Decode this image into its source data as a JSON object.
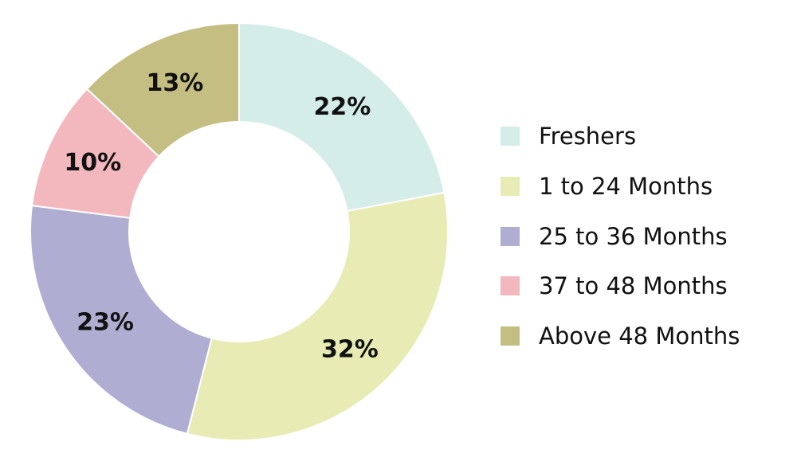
{
  "chart_data": {
    "type": "pie",
    "title": "",
    "donut": true,
    "categories": [
      "Freshers",
      "1 to 24 Months",
      "25 to 36 Months",
      "37 to 48 Months",
      "Above 48 Months"
    ],
    "values": [
      22,
      32,
      23,
      10,
      13
    ],
    "labels": [
      "22%",
      "32%",
      "23%",
      "10%",
      "13%"
    ],
    "colors": [
      "#d4ede9",
      "#e8ebb4",
      "#afaed2",
      "#f3b7be",
      "#c4be82"
    ],
    "legend_position": "right"
  }
}
